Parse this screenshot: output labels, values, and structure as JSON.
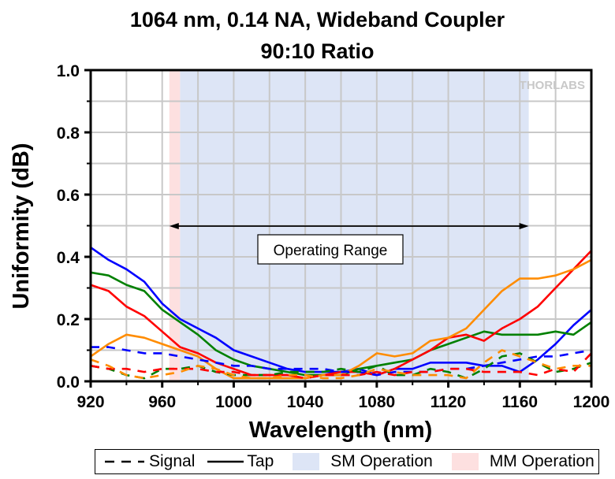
{
  "chart_data": {
    "type": "line",
    "title": "1064 nm, 0.14 NA, Wideband Coupler",
    "subtitle": "90:10 Ratio",
    "xlabel": "Wavelength (nm)",
    "ylabel": "Uniformity (dB)",
    "xlim": [
      920,
      1200
    ],
    "ylim": [
      0.0,
      1.0
    ],
    "xticks": [
      920,
      960,
      1000,
      1040,
      1080,
      1120,
      1160,
      1200
    ],
    "xtick_labels": [
      "920",
      "960",
      "1000",
      "1040",
      "1080",
      "1120",
      "1160",
      "1200"
    ],
    "yticks": [
      0.0,
      0.2,
      0.4,
      0.6,
      0.8,
      1.0
    ],
    "ytick_labels": [
      "0.0",
      "0.2",
      "0.4",
      "0.6",
      "0.8",
      "1.0"
    ],
    "grid": true,
    "watermark": "THORLABS",
    "regions": [
      {
        "name": "MM Operation",
        "x": [
          964,
          970
        ],
        "color": "#fde0e0"
      },
      {
        "name": "SM Operation",
        "x": [
          970,
          1165
        ],
        "color": "#dde5f6"
      }
    ],
    "annotation": {
      "text": "Operating Range",
      "arrow_x": [
        964,
        1165
      ],
      "arrow_y": 0.5
    },
    "x": [
      920,
      930,
      940,
      950,
      960,
      970,
      980,
      990,
      1000,
      1010,
      1020,
      1030,
      1040,
      1050,
      1060,
      1070,
      1080,
      1090,
      1100,
      1110,
      1120,
      1130,
      1140,
      1150,
      1160,
      1170,
      1180,
      1190,
      1200
    ],
    "series": [
      {
        "name": "Tap (blue)",
        "style": "solid",
        "color": "#0000ff",
        "values": [
          0.43,
          0.39,
          0.36,
          0.32,
          0.25,
          0.2,
          0.17,
          0.14,
          0.1,
          0.08,
          0.06,
          0.04,
          0.03,
          0.03,
          0.03,
          0.04,
          0.02,
          0.04,
          0.04,
          0.06,
          0.06,
          0.06,
          0.05,
          0.05,
          0.03,
          0.07,
          0.12,
          0.18,
          0.23
        ]
      },
      {
        "name": "Tap (green)",
        "style": "solid",
        "color": "#008000",
        "values": [
          0.35,
          0.34,
          0.31,
          0.29,
          0.23,
          0.19,
          0.15,
          0.1,
          0.07,
          0.05,
          0.04,
          0.03,
          0.02,
          0.02,
          0.02,
          0.04,
          0.05,
          0.06,
          0.07,
          0.1,
          0.12,
          0.14,
          0.16,
          0.15,
          0.15,
          0.15,
          0.16,
          0.15,
          0.19
        ]
      },
      {
        "name": "Tap (red)",
        "style": "solid",
        "color": "#ff0000",
        "values": [
          0.31,
          0.29,
          0.24,
          0.21,
          0.16,
          0.11,
          0.09,
          0.06,
          0.04,
          0.02,
          0.02,
          0.02,
          0.01,
          0.02,
          0.03,
          0.03,
          0.02,
          0.04,
          0.07,
          0.1,
          0.14,
          0.15,
          0.13,
          0.17,
          0.2,
          0.24,
          0.3,
          0.36,
          0.42
        ]
      },
      {
        "name": "Tap (orange)",
        "style": "solid",
        "color": "#ff8c00",
        "values": [
          0.08,
          0.12,
          0.15,
          0.14,
          0.12,
          0.1,
          0.08,
          0.04,
          0.01,
          0.01,
          0.01,
          0.01,
          0.01,
          0.02,
          0.02,
          0.05,
          0.09,
          0.08,
          0.09,
          0.13,
          0.14,
          0.17,
          0.23,
          0.29,
          0.33,
          0.33,
          0.34,
          0.36,
          0.39
        ]
      },
      {
        "name": "Signal (blue)",
        "style": "dashed",
        "color": "#0000ff",
        "values": [
          0.11,
          0.11,
          0.1,
          0.09,
          0.09,
          0.08,
          0.07,
          0.06,
          0.05,
          0.05,
          0.04,
          0.04,
          0.04,
          0.04,
          0.03,
          0.03,
          0.02,
          0.03,
          0.03,
          0.03,
          0.04,
          0.04,
          0.05,
          0.06,
          0.07,
          0.08,
          0.08,
          0.09,
          0.1
        ]
      },
      {
        "name": "Signal (green)",
        "style": "dashed",
        "color": "#008000",
        "values": [
          0.05,
          0.04,
          0.02,
          0.01,
          0.04,
          0.04,
          0.05,
          0.03,
          0.02,
          0.02,
          0.02,
          0.03,
          0.03,
          0.03,
          0.04,
          0.03,
          0.05,
          0.02,
          0.02,
          0.04,
          0.03,
          0.01,
          0.04,
          0.08,
          0.09,
          0.06,
          0.03,
          0.04,
          0.06
        ]
      },
      {
        "name": "Signal (red)",
        "style": "dashed",
        "color": "#ff0000",
        "values": [
          0.05,
          0.04,
          0.04,
          0.03,
          0.04,
          0.04,
          0.04,
          0.03,
          0.03,
          0.02,
          0.02,
          0.02,
          0.01,
          0.02,
          0.02,
          0.02,
          0.03,
          0.02,
          0.03,
          0.03,
          0.04,
          0.04,
          0.03,
          0.03,
          0.03,
          0.02,
          0.04,
          0.03,
          0.09
        ]
      },
      {
        "name": "Signal (orange)",
        "style": "dashed",
        "color": "#ff8c00",
        "values": [
          0.07,
          0.05,
          0.02,
          0.01,
          0.02,
          0.03,
          0.05,
          0.04,
          0.02,
          0.01,
          0.01,
          0.02,
          0.02,
          0.01,
          0.01,
          0.02,
          0.04,
          0.03,
          0.02,
          0.02,
          0.02,
          0.01,
          0.06,
          0.1,
          0.08,
          0.06,
          0.04,
          0.05,
          0.05
        ]
      }
    ],
    "legend": [
      {
        "label": "Signal",
        "type": "dashed-line",
        "color": "#000000"
      },
      {
        "label": "Tap",
        "type": "solid-line",
        "color": "#000000"
      },
      {
        "label": "SM Operation",
        "type": "fill",
        "color": "#dde5f6"
      },
      {
        "label": "MM Operation",
        "type": "fill",
        "color": "#fde0e0"
      }
    ],
    "legend_position": "bottom"
  }
}
